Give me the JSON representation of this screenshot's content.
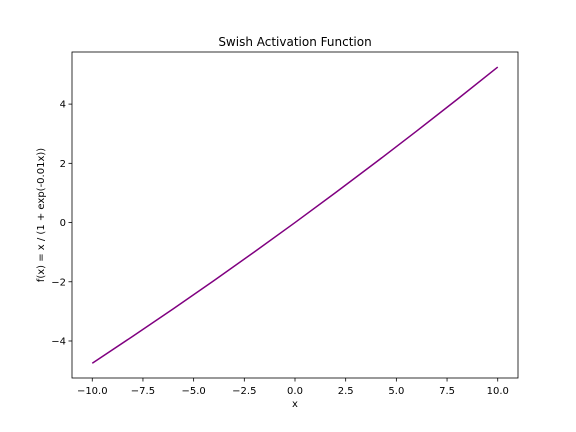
{
  "chart_data": {
    "type": "line",
    "title": "Swish Activation Function",
    "xlabel": "x",
    "ylabel": "f(x) = x / (1 + exp(-0.01x))",
    "xlim": [
      -11.0,
      11.0
    ],
    "ylim": [
      -5.25,
      5.76
    ],
    "x_ticks": [
      {
        "value": -10.0,
        "label": "−10.0"
      },
      {
        "value": -7.5,
        "label": "−7.5"
      },
      {
        "value": -5.0,
        "label": "−5.0"
      },
      {
        "value": -2.5,
        "label": "−2.5"
      },
      {
        "value": 0.0,
        "label": "0.0"
      },
      {
        "value": 2.5,
        "label": "2.5"
      },
      {
        "value": 5.0,
        "label": "5.0"
      },
      {
        "value": 7.5,
        "label": "7.5"
      },
      {
        "value": 10.0,
        "label": "10.0"
      }
    ],
    "y_ticks": [
      {
        "value": -4,
        "label": "−4"
      },
      {
        "value": -2,
        "label": "−2"
      },
      {
        "value": 0,
        "label": "0"
      },
      {
        "value": 2,
        "label": "2"
      },
      {
        "value": 4,
        "label": "4"
      }
    ],
    "grid": false,
    "series": [
      {
        "color": "#800080",
        "x": [
          -10,
          -8,
          -6,
          -4,
          -2,
          0,
          2,
          4,
          6,
          8,
          10
        ],
        "y": [
          -4.75,
          -3.84,
          -2.91,
          -1.96,
          -0.99,
          0.0,
          1.01,
          2.04,
          3.09,
          4.16,
          5.25
        ]
      }
    ]
  }
}
